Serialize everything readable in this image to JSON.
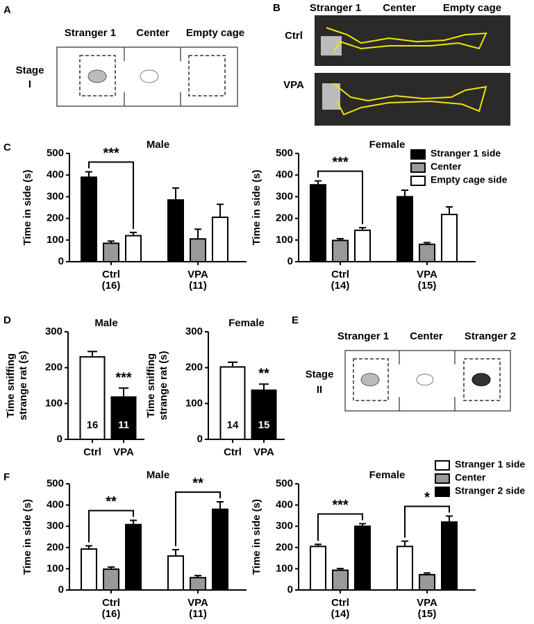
{
  "panel_labels": [
    "A",
    "B",
    "C",
    "D",
    "E",
    "F"
  ],
  "diagram_a": {
    "compartments": [
      "Stranger 1",
      "Center",
      "Empty cage"
    ],
    "stage": [
      "Stage",
      "I"
    ]
  },
  "photos_b": {
    "compartments": [
      "Stranger 1",
      "Center",
      "Empty cage"
    ],
    "rows": [
      "Ctrl",
      "VPA"
    ]
  },
  "diagram_e": {
    "compartments": [
      "Stranger 1",
      "Center",
      "Stranger 2"
    ],
    "stage": [
      "Stage",
      "II"
    ]
  },
  "chart_data": [
    {
      "type": "grouped-bar",
      "title": "Male",
      "ylabel": [
        "Time in side (s)"
      ],
      "categories": [
        "Ctrl",
        "VPA"
      ],
      "category_sublabels": [
        "(16)",
        "(11)"
      ],
      "series": [
        {
          "color": "#000000",
          "values": [
            390,
            285
          ],
          "errors": [
            25,
            55
          ]
        },
        {
          "color": "#999999",
          "values": [
            85,
            105
          ],
          "errors": [
            10,
            45
          ]
        },
        {
          "color": "#ffffff",
          "values": [
            120,
            205
          ],
          "errors": [
            15,
            60
          ]
        }
      ],
      "significance": [
        "***",
        null
      ],
      "ylim": [
        0,
        500
      ],
      "yticks": [
        0,
        100,
        200,
        300,
        400,
        500
      ]
    },
    {
      "type": "grouped-bar",
      "title": "Female",
      "ylabel": [
        "Time in side (s)"
      ],
      "categories": [
        "Ctrl",
        "VPA"
      ],
      "category_sublabels": [
        "(14)",
        "(15)"
      ],
      "series": [
        {
          "name": "Stranger 1 side",
          "color": "#000000",
          "values": [
            355,
            300
          ],
          "errors": [
            18,
            30
          ]
        },
        {
          "name": "Center",
          "color": "#999999",
          "values": [
            98,
            80
          ],
          "errors": [
            8,
            8
          ]
        },
        {
          "name": "Empty cage side",
          "color": "#ffffff",
          "values": [
            145,
            218
          ],
          "errors": [
            12,
            35
          ]
        }
      ],
      "significance": [
        "***",
        null
      ],
      "ylim": [
        0,
        500
      ],
      "yticks": [
        0,
        100,
        200,
        300,
        400,
        500
      ],
      "legend": "upper right"
    },
    {
      "type": "bar",
      "title": "Male",
      "ylabel": [
        "Time sniffing",
        "strange rat (s)"
      ],
      "categories": [
        "Ctrl",
        "VPA"
      ],
      "values": [
        230,
        118
      ],
      "errors": [
        15,
        25
      ],
      "n": [
        16,
        11
      ],
      "colors": [
        "#ffffff",
        "#000000"
      ],
      "significance": [
        null,
        "***"
      ],
      "ylim": [
        0,
        300
      ],
      "yticks": [
        0,
        100,
        200,
        300
      ]
    },
    {
      "type": "bar",
      "title": "Female",
      "ylabel": [
        "Time sniffing",
        "strange rat (s)"
      ],
      "categories": [
        "Ctrl",
        "VPA"
      ],
      "values": [
        202,
        137
      ],
      "errors": [
        13,
        17
      ],
      "n": [
        14,
        15
      ],
      "colors": [
        "#ffffff",
        "#000000"
      ],
      "significance": [
        null,
        "**"
      ],
      "ylim": [
        0,
        300
      ],
      "yticks": [
        0,
        100,
        200,
        300
      ]
    },
    {
      "type": "grouped-bar",
      "title": "Male",
      "ylabel": [
        "Time in side (s)"
      ],
      "categories": [
        "Ctrl",
        "VPA"
      ],
      "category_sublabels": [
        "(16)",
        "(11)"
      ],
      "series": [
        {
          "color": "#ffffff",
          "values": [
            193,
            160
          ],
          "errors": [
            15,
            30
          ]
        },
        {
          "color": "#999999",
          "values": [
            98,
            58
          ],
          "errors": [
            10,
            10
          ]
        },
        {
          "color": "#000000",
          "values": [
            308,
            380
          ],
          "errors": [
            20,
            35
          ]
        }
      ],
      "significance": [
        "**",
        "**"
      ],
      "ylim": [
        0,
        500
      ],
      "yticks": [
        0,
        100,
        200,
        300,
        400,
        500
      ]
    },
    {
      "type": "grouped-bar",
      "title": "Female",
      "ylabel": [
        "Time in side (s)"
      ],
      "categories": [
        "Ctrl",
        "VPA"
      ],
      "category_sublabels": [
        "(14)",
        "(15)"
      ],
      "series": [
        {
          "name": "Stranger 1 side",
          "color": "#ffffff",
          "values": [
            205,
            205
          ],
          "errors": [
            10,
            25
          ]
        },
        {
          "name": "Center",
          "color": "#999999",
          "values": [
            93,
            72
          ],
          "errors": [
            8,
            8
          ]
        },
        {
          "name": "Stranger 2 side",
          "color": "#000000",
          "values": [
            300,
            320
          ],
          "errors": [
            12,
            28
          ]
        }
      ],
      "significance": [
        "***",
        "*"
      ],
      "ylim": [
        0,
        500
      ],
      "yticks": [
        0,
        100,
        200,
        300,
        400,
        500
      ],
      "legend": "upper right"
    }
  ]
}
